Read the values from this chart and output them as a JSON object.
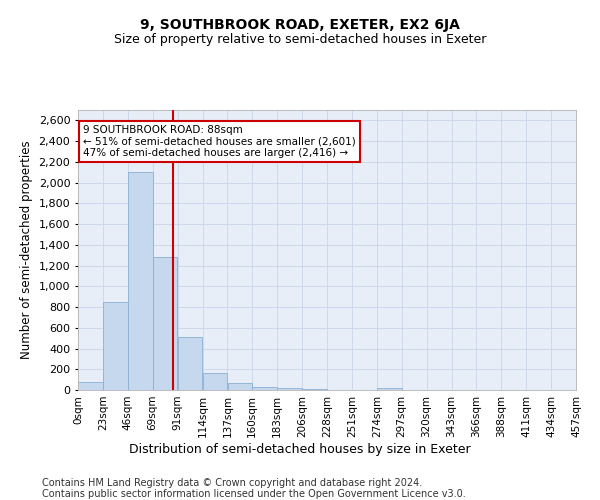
{
  "title": "9, SOUTHBROOK ROAD, EXETER, EX2 6JA",
  "subtitle": "Size of property relative to semi-detached houses in Exeter",
  "xlabel": "Distribution of semi-detached houses by size in Exeter",
  "ylabel": "Number of semi-detached properties",
  "footer_line1": "Contains HM Land Registry data © Crown copyright and database right 2024.",
  "footer_line2": "Contains public sector information licensed under the Open Government Licence v3.0.",
  "annotation_line1": "9 SOUTHBROOK ROAD: 88sqm",
  "annotation_line2": "← 51% of semi-detached houses are smaller (2,601)",
  "annotation_line3": "47% of semi-detached houses are larger (2,416) →",
  "property_size": 88,
  "bin_edges": [
    0,
    23,
    46,
    69,
    92,
    115,
    138,
    161,
    184,
    207,
    230,
    253,
    276,
    299,
    322,
    345,
    368,
    391,
    414,
    437,
    460
  ],
  "bin_labels": [
    "0sqm",
    "23sqm",
    "46sqm",
    "69sqm",
    "91sqm",
    "114sqm",
    "137sqm",
    "160sqm",
    "183sqm",
    "206sqm",
    "228sqm",
    "251sqm",
    "274sqm",
    "297sqm",
    "320sqm",
    "343sqm",
    "366sqm",
    "388sqm",
    "411sqm",
    "434sqm",
    "457sqm"
  ],
  "bar_heights": [
    80,
    850,
    2100,
    1280,
    510,
    160,
    65,
    30,
    20,
    10,
    0,
    0,
    20,
    0,
    0,
    0,
    0,
    0,
    0,
    0
  ],
  "bar_color": "#c5d8ee",
  "bar_edgecolor": "#8ab0d4",
  "vline_x": 88,
  "vline_color": "#cc0000",
  "ylim": [
    0,
    2700
  ],
  "yticks": [
    0,
    200,
    400,
    600,
    800,
    1000,
    1200,
    1400,
    1600,
    1800,
    2000,
    2200,
    2400,
    2600
  ],
  "grid_color": "#c8d4e8",
  "plot_background": "#e8eef8",
  "annotation_box_edgecolor": "#cc0000",
  "title_fontsize": 10,
  "subtitle_fontsize": 9,
  "label_fontsize": 8.5,
  "tick_fontsize": 8,
  "footer_fontsize": 7
}
